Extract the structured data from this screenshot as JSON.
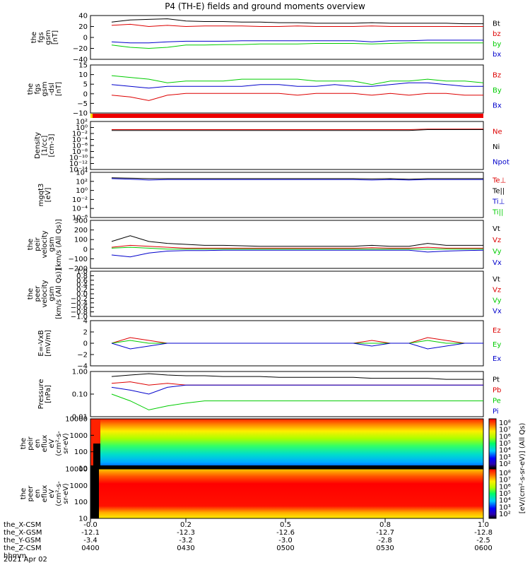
{
  "page": {
    "title": "P4 (TH-E) fields and ground moments overview",
    "date_label": "2021 Apr 02"
  },
  "colors": {
    "black": "#000000",
    "red": "#dd0000",
    "green": "#00cc00",
    "blue": "#0000cc",
    "bar_red": "#ee0000",
    "bar_yellow": "#ffdd00"
  },
  "x_axis": {
    "fraction_ticks": [
      "0.0",
      "0.2",
      "0.5",
      "0.8",
      "1.0"
    ],
    "fraction_ticks_prefixed": [
      "-0.0",
      "0.2",
      "0.5",
      "0.8",
      "1.0"
    ],
    "rows": [
      {
        "label": "the_X-CSM",
        "values": [
          "-0.0",
          "0.2",
          "0.5",
          "0.8",
          "1.0"
        ]
      },
      {
        "label": "the_X-GSM",
        "values": [
          "-12.1",
          "-12.3",
          "-12.6",
          "-12.7",
          "-12.8"
        ]
      },
      {
        "label": "the_Y-GSM",
        "values": [
          "-3.4",
          "-3.2",
          "-3.0",
          "-2.8",
          "-2.5"
        ]
      },
      {
        "label": "the_Z-CSM",
        "values": [
          "0400",
          "0430",
          "0500",
          "0530",
          "0600"
        ]
      },
      {
        "label": "hhmm",
        "values": [
          "",
          "",
          "",
          "",
          ""
        ]
      }
    ]
  },
  "panels": [
    {
      "id": "fgs",
      "ylabel": [
        "the",
        "fgs",
        "gsm",
        "[nT]"
      ],
      "yticks": [
        "40",
        "20",
        "0",
        "−20",
        "−40"
      ],
      "legend": [
        {
          "text": "Bt",
          "color": "#000000"
        },
        {
          "text": "bz",
          "color": "#dd0000"
        },
        {
          "text": "by",
          "color": "#00cc00"
        },
        {
          "text": "bx",
          "color": "#0000cc"
        }
      ]
    },
    {
      "id": "fgs_dsl",
      "ylabel": [
        "the",
        "fgs",
        "gsm",
        "-dsl",
        "[nT]"
      ],
      "yticks": [
        "15",
        "10",
        "5",
        "0",
        "−5",
        "−10"
      ],
      "legend": [
        {
          "text": "Bz",
          "color": "#dd0000"
        },
        {
          "text": "By",
          "color": "#00cc00"
        },
        {
          "text": "Bx",
          "color": "#0000cc"
        }
      ]
    },
    {
      "id": "density",
      "ylabel": [
        "Density",
        "[1/cc]",
        "[cm-3]"
      ],
      "yticks": [
        "10²",
        "10⁰",
        "10⁻²",
        "10⁻⁴",
        "10⁻⁶",
        "10⁻⁸",
        "10⁻¹⁰",
        "10⁻¹²",
        "10⁻¹⁴"
      ],
      "legend": [
        {
          "text": "Ne",
          "color": "#dd0000"
        },
        {
          "text": "Ni",
          "color": "#000000"
        },
        {
          "text": "Npot",
          "color": "#0000cc"
        }
      ]
    },
    {
      "id": "temp",
      "ylabel": [
        "mgqt3",
        "[eV]"
      ],
      "yticks": [
        "10⁴",
        "10²",
        "10⁰",
        "10⁻²",
        "10⁻⁴",
        "10⁻⁶"
      ],
      "legend": [
        {
          "text": "Te⊥",
          "color": "#dd0000"
        },
        {
          "text": "Te||",
          "color": "#000000"
        },
        {
          "text": "Ti⊥",
          "color": "#0000cc"
        },
        {
          "text": "Ti||",
          "color": "#00cc00"
        }
      ]
    },
    {
      "id": "peir_vel",
      "ylabel": [
        "the",
        "peir",
        "velocity",
        "gsm",
        "[km/s (All Qs)]"
      ],
      "yticks": [
        "300",
        "200",
        "100",
        "0",
        "−100",
        "−200"
      ],
      "legend": [
        {
          "text": "Vt",
          "color": "#000000"
        },
        {
          "text": "Vz",
          "color": "#dd0000"
        },
        {
          "text": "Vy",
          "color": "#00cc00"
        },
        {
          "text": "Vx",
          "color": "#0000cc"
        }
      ]
    },
    {
      "id": "peer_vel",
      "ylabel": [
        "the",
        "peer",
        "velocity",
        "gsm",
        "[km/s (All Qs)]"
      ],
      "yticks": [
        "1.0",
        "0.8",
        "0.6",
        "0.4",
        "0.2",
        "0.0",
        "−0.2",
        "−0.4",
        "−0.6",
        "−0.8",
        "−1.0"
      ],
      "legend": [
        {
          "text": "Vt",
          "color": "#000000"
        },
        {
          "text": "Vz",
          "color": "#dd0000"
        },
        {
          "text": "Vy",
          "color": "#00cc00"
        },
        {
          "text": "Vx",
          "color": "#0000cc"
        }
      ]
    },
    {
      "id": "efield",
      "ylabel": [
        "E=-VxB",
        "[mV/m]"
      ],
      "yticks": [
        "4",
        "2",
        "0",
        "−2",
        "−4"
      ],
      "legend": [
        {
          "text": "Ez",
          "color": "#dd0000"
        },
        {
          "text": "Ey",
          "color": "#00cc00"
        },
        {
          "text": "Ex",
          "color": "#0000cc"
        }
      ]
    },
    {
      "id": "pressure",
      "ylabel": [
        "Pressure",
        "[nPa]"
      ],
      "yticks": [
        "1.00",
        "0.10",
        "0.01"
      ],
      "legend": [
        {
          "text": "Pt",
          "color": "#000000"
        },
        {
          "text": "Pb",
          "color": "#dd0000"
        },
        {
          "text": "Pe",
          "color": "#00cc00"
        },
        {
          "text": "Pi",
          "color": "#0000cc"
        }
      ]
    },
    {
      "id": "peir_spec",
      "ylabel": [
        "the",
        "peir",
        "en",
        "eflux",
        "eV",
        "(cm²-s-",
        "sr-eV)"
      ],
      "yticks": [
        "10000",
        "1000",
        "100",
        "10"
      ]
    },
    {
      "id": "peer_spec",
      "ylabel": [
        "the",
        "peer",
        "en",
        "eflux",
        "eV",
        "(cm²-s-",
        "sr-eV)"
      ],
      "yticks": [
        "10000",
        "1000",
        "100",
        "10"
      ]
    }
  ],
  "colorbars": [
    {
      "ticks": [
        "10⁸",
        "10⁷",
        "10⁶",
        "10⁵",
        "10⁴",
        "10³",
        "10²"
      ]
    },
    {
      "ticks": [
        "10⁸",
        "10⁷",
        "10⁶",
        "10⁵",
        "10⁴",
        "10³",
        "10²"
      ]
    }
  ],
  "colorbar_label": "[eV/(cm²-s-sr-eV)] (All Qs)",
  "chart_data": {
    "type": "line",
    "title": "P4 (TH-E) fields and ground moments overview",
    "x_range": [
      0.0,
      1.0
    ],
    "x_time_ticks": [
      "0400",
      "0430",
      "0500",
      "0530",
      "0600"
    ],
    "x": [
      0.0,
      0.05,
      0.1,
      0.15,
      0.2,
      0.25,
      0.3,
      0.35,
      0.4,
      0.45,
      0.5,
      0.55,
      0.6,
      0.65,
      0.7,
      0.75,
      0.8,
      0.85,
      0.9,
      0.95,
      1.0
    ],
    "panels": [
      {
        "name": "fgs gsm",
        "ylim": [
          -40,
          40
        ],
        "series": [
          {
            "name": "Bt",
            "values": [
              28,
              32,
              33,
              34,
              30,
              29,
              29,
              28,
              28,
              27,
              27,
              26,
              26,
              26,
              27,
              26,
              26,
              26,
              26,
              25,
              25
            ]
          },
          {
            "name": "bz",
            "values": [
              22,
              24,
              20,
              22,
              20,
              21,
              21,
              21,
              20,
              20,
              21,
              20,
              20,
              20,
              21,
              20,
              20,
              20,
              20,
              20,
              20
            ]
          },
          {
            "name": "by",
            "values": [
              -14,
              -18,
              -20,
              -18,
              -14,
              -14,
              -13,
              -13,
              -12,
              -12,
              -12,
              -11,
              -11,
              -11,
              -12,
              -11,
              -10,
              -10,
              -10,
              -10,
              -10
            ]
          },
          {
            "name": "bx",
            "values": [
              -8,
              -10,
              -10,
              -8,
              -7,
              -7,
              -7,
              -6,
              -6,
              -6,
              -6,
              -6,
              -6,
              -6,
              -8,
              -6,
              -6,
              -5,
              -5,
              -5,
              -5
            ]
          }
        ]
      },
      {
        "name": "fgs dsl",
        "ylim": [
          -12,
          15
        ],
        "series": [
          {
            "name": "Bz",
            "values": [
              -2,
              -3,
              -5,
              -2,
              -1,
              -1,
              -1,
              -1,
              -1,
              -1,
              -2,
              -1,
              -1,
              -1,
              -2,
              -1,
              -2,
              -1,
              -1,
              -2,
              -2
            ]
          },
          {
            "name": "By",
            "values": [
              9,
              8,
              7,
              5,
              6,
              6,
              6,
              7,
              7,
              7,
              7,
              6,
              6,
              6,
              4,
              6,
              6,
              7,
              6,
              6,
              5
            ]
          },
          {
            "name": "Bx",
            "values": [
              4,
              3,
              2,
              3,
              3,
              3,
              3,
              3,
              4,
              4,
              3,
              3,
              4,
              3,
              3,
              4,
              5,
              5,
              4,
              3,
              3
            ]
          }
        ]
      },
      {
        "name": "Density",
        "scale": "log",
        "series": [
          {
            "name": "Ne",
            "values": [
              0.2,
              0.2,
              0.2,
              0.2,
              0.2,
              0.2,
              0.2,
              0.2,
              0.2,
              0.2,
              0.2,
              0.2,
              0.2,
              0.2,
              0.2,
              0.2,
              0.2,
              0.3,
              0.3,
              0.3,
              0.3
            ]
          },
          {
            "name": "Ni",
            "values": [
              0.1,
              0.1,
              0.1,
              0.1,
              0.1,
              0.1,
              0.1,
              0.1,
              0.1,
              0.1,
              0.1,
              0.1,
              0.1,
              0.1,
              0.1,
              0.1,
              0.1,
              0.2,
              0.2,
              0.2,
              0.2
            ]
          }
        ]
      },
      {
        "name": "Temperature",
        "scale": "log",
        "series": [
          {
            "name": "Te||",
            "values": [
              600,
              500,
              400,
              400,
              400,
              400,
              400,
              400,
              400,
              400,
              400,
              400,
              400,
              400,
              350,
              400,
              300,
              400,
              400,
              400,
              400
            ]
          },
          {
            "name": "Ti⊥",
            "values": [
              400,
              300,
              200,
              250,
              250,
              250,
              250,
              250,
              250,
              250,
              250,
              250,
              250,
              250,
              200,
              250,
              200,
              250,
              250,
              250,
              250
            ]
          }
        ]
      },
      {
        "name": "peir velocity",
        "ylim": [
          -200,
          300
        ],
        "series": [
          {
            "name": "Vt",
            "values": [
              80,
              140,
              80,
              60,
              50,
              40,
              40,
              35,
              30,
              30,
              30,
              30,
              30,
              30,
              40,
              30,
              30,
              60,
              40,
              40,
              40
            ]
          },
          {
            "name": "Vz",
            "values": [
              20,
              40,
              30,
              20,
              10,
              10,
              10,
              10,
              10,
              10,
              10,
              10,
              10,
              10,
              15,
              10,
              10,
              20,
              10,
              10,
              10
            ]
          },
          {
            "name": "Vy",
            "values": [
              10,
              20,
              10,
              0,
              0,
              0,
              0,
              0,
              0,
              0,
              0,
              0,
              0,
              0,
              0,
              0,
              0,
              0,
              0,
              0,
              0
            ]
          },
          {
            "name": "Vx",
            "values": [
              -60,
              -80,
              -40,
              -20,
              -15,
              -15,
              -10,
              -10,
              -10,
              -10,
              -10,
              -10,
              -10,
              -10,
              -10,
              -10,
              -10,
              -30,
              -20,
              -15,
              -10
            ]
          }
        ]
      },
      {
        "name": "E=-VxB",
        "ylim": [
          -4,
          4
        ],
        "series": [
          {
            "name": "Ez",
            "values": [
              0,
              1,
              0.5,
              0,
              0,
              0,
              0,
              0,
              0,
              0,
              0,
              0,
              0,
              0,
              0.5,
              0,
              0,
              1,
              0.5,
              0,
              0
            ]
          },
          {
            "name": "Ey",
            "values": [
              0,
              0.5,
              0,
              0,
              0,
              0,
              0,
              0,
              0,
              0,
              0,
              0,
              0,
              0,
              0,
              0,
              0,
              0.5,
              0,
              0,
              0
            ]
          },
          {
            "name": "Ex",
            "values": [
              0,
              -1,
              -0.5,
              0,
              0,
              0,
              0,
              0,
              0,
              0,
              0,
              0,
              0,
              0,
              -0.5,
              0,
              0,
              -1,
              -0.5,
              0,
              0
            ]
          }
        ]
      },
      {
        "name": "Pressure",
        "scale": "log",
        "series": [
          {
            "name": "Pt",
            "values": [
              0.6,
              0.7,
              0.8,
              0.7,
              0.65,
              0.65,
              0.6,
              0.6,
              0.6,
              0.55,
              0.55,
              0.55,
              0.55,
              0.55,
              0.5,
              0.5,
              0.5,
              0.5,
              0.45,
              0.45,
              0.45
            ]
          },
          {
            "name": "Pb",
            "values": [
              0.3,
              0.35,
              0.25,
              0.3,
              0.25,
              0.25,
              0.25,
              0.25,
              0.25,
              0.25,
              0.25,
              0.25,
              0.25,
              0.25,
              0.25,
              0.25,
              0.25,
              0.25,
              0.25,
              0.25,
              0.25
            ]
          },
          {
            "name": "Pe",
            "values": [
              0.1,
              0.05,
              0.02,
              0.03,
              0.04,
              0.05,
              0.05,
              0.05,
              0.05,
              0.05,
              0.05,
              0.05,
              0.05,
              0.05,
              0.05,
              0.05,
              0.05,
              0.05,
              0.05,
              0.05,
              0.05
            ]
          },
          {
            "name": "Pi",
            "values": [
              0.2,
              0.15,
              0.1,
              0.2,
              0.25,
              0.25,
              0.25,
              0.25,
              0.25,
              0.25,
              0.25,
              0.25,
              0.25,
              0.25,
              0.25,
              0.25,
              0.25,
              0.25,
              0.25,
              0.25,
              0.25
            ]
          }
        ]
      }
    ]
  }
}
